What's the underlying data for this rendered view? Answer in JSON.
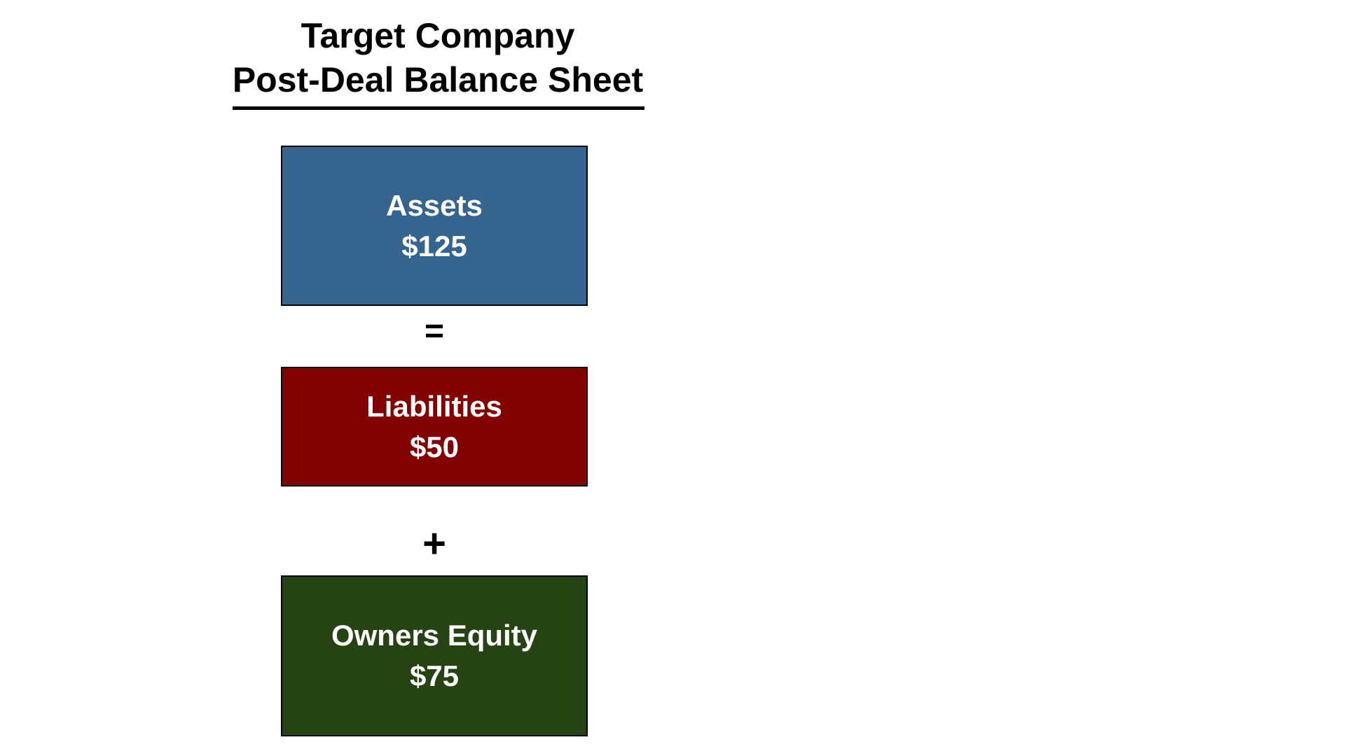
{
  "title": {
    "line1": "Target Company",
    "line2": "Post-Deal Balance Sheet"
  },
  "diagram": {
    "boxes": [
      {
        "label": "Assets",
        "value": "$125",
        "color": "#35648E"
      },
      {
        "label": "Liabilities",
        "value": "$50",
        "color": "#820202"
      },
      {
        "label": "Owners Equity",
        "value": "$75",
        "color": "#264413"
      }
    ],
    "operators": {
      "assets_liabilities": "=",
      "liabilities_equity": "+"
    }
  },
  "colors": {
    "background": "#ffffff",
    "text_on_boxes": "#ffffff",
    "title_text": "#000000",
    "box_border": "#000000"
  }
}
